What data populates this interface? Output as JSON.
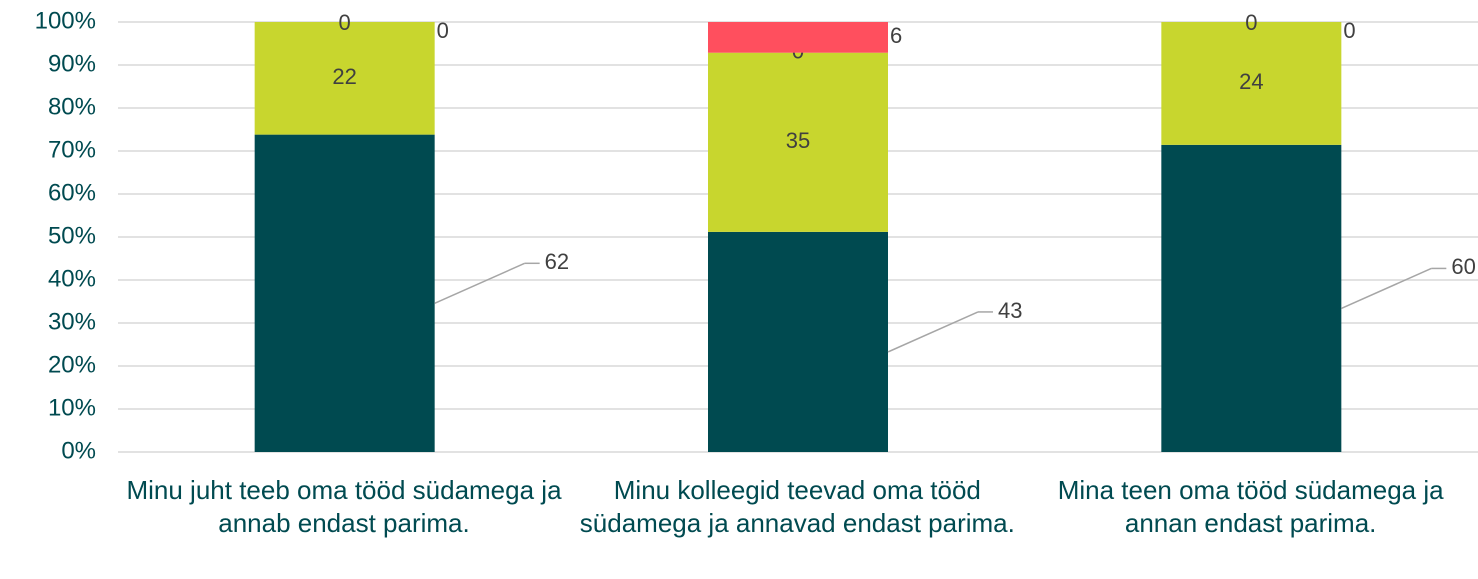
{
  "chart_data": {
    "type": "stacked_percent_bar",
    "categories": [
      "Minu juht teeb oma tööd südamega ja annab endast parima.",
      "Minu kolleegid teevad oma tööd südamega ja annavad endast parima.",
      "Mina teen oma tööd südamega ja annan endast parima."
    ],
    "series": [
      {
        "color": "#004a50",
        "values": [
          62,
          43,
          60
        ]
      },
      {
        "color": "#c8d62e",
        "values": [
          22,
          35,
          24
        ]
      },
      {
        "color": "#f4a300",
        "values": [
          0,
          0,
          0
        ]
      },
      {
        "color": "#ff4f5e",
        "values": [
          0,
          6,
          0
        ]
      }
    ],
    "ylim": [
      0,
      100
    ],
    "yticks": [
      {
        "value": 0,
        "label": "0%"
      },
      {
        "value": 10,
        "label": "10%"
      },
      {
        "value": 20,
        "label": "20%"
      },
      {
        "value": 30,
        "label": "30%"
      },
      {
        "value": 40,
        "label": "40%"
      },
      {
        "value": 50,
        "label": "50%"
      },
      {
        "value": 60,
        "label": "60%"
      },
      {
        "value": 70,
        "label": "70%"
      },
      {
        "value": 80,
        "label": "80%"
      },
      {
        "value": 90,
        "label": "90%"
      },
      {
        "value": 100,
        "label": "100%"
      }
    ],
    "grid": true
  }
}
